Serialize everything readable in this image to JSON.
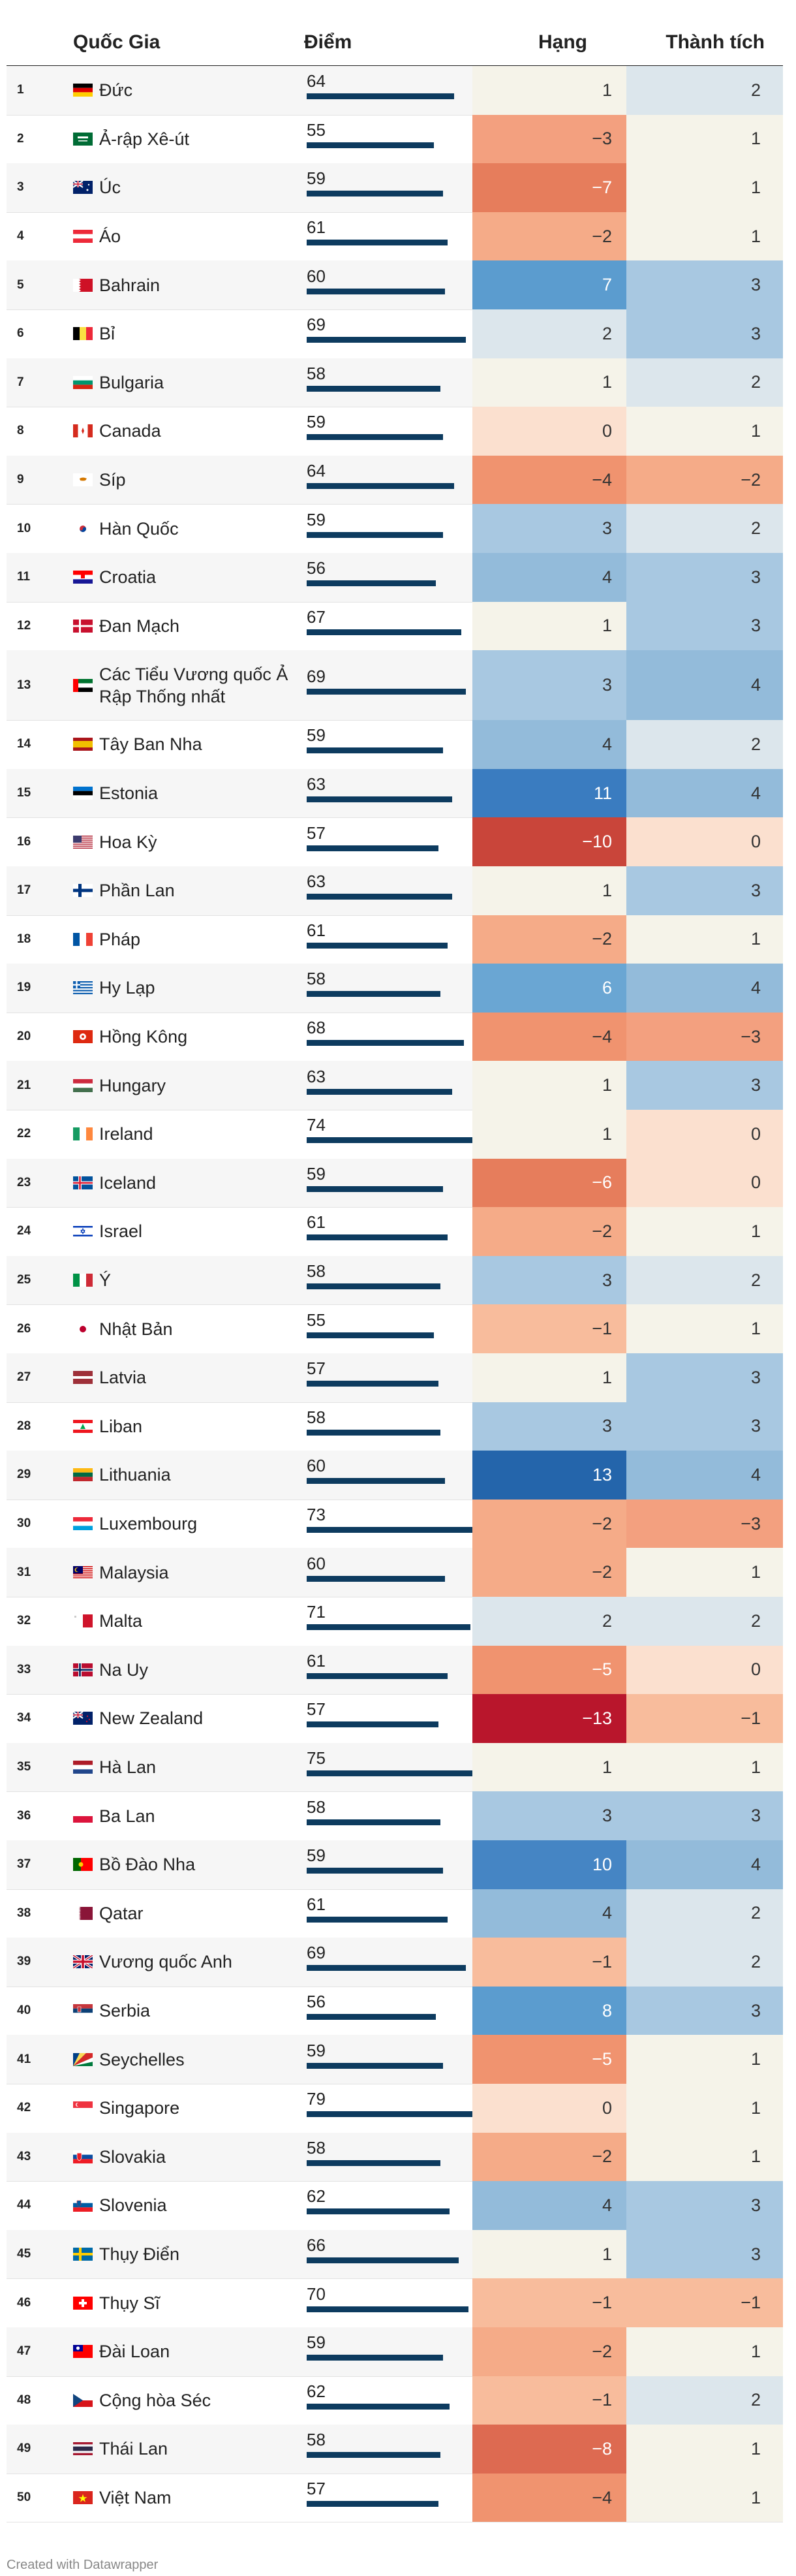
{
  "header": {
    "country": "Quốc Gia",
    "score": "Điểm",
    "rank": "Hạng",
    "achievement": "Thành tích"
  },
  "credit": "Created with Datawrapper",
  "colors": {
    "bar": "#0d3b5f",
    "neutral": "#f5f3e9"
  },
  "chart_data": {
    "type": "table",
    "columns": [
      "#",
      "Quốc Gia",
      "Điểm",
      "Hạng",
      "Thành tích"
    ],
    "score_max": 80,
    "rows": [
      {
        "n": "1",
        "country": "Đức",
        "flag": "de",
        "score": 64,
        "rank": "1",
        "ach": "2"
      },
      {
        "n": "2",
        "country": "Ả-rập Xê-út",
        "flag": "sa",
        "score": 55,
        "rank": "−3",
        "ach": "1"
      },
      {
        "n": "3",
        "country": "Úc",
        "flag": "au",
        "score": 59,
        "rank": "−7",
        "ach": "1"
      },
      {
        "n": "4",
        "country": "Áo",
        "flag": "at",
        "score": 61,
        "rank": "−2",
        "ach": "1"
      },
      {
        "n": "5",
        "country": "Bahrain",
        "flag": "bh",
        "score": 60,
        "rank": "7",
        "ach": "3"
      },
      {
        "n": "6",
        "country": "Bỉ",
        "flag": "be",
        "score": 69,
        "rank": "2",
        "ach": "3"
      },
      {
        "n": "7",
        "country": "Bulgaria",
        "flag": "bg",
        "score": 58,
        "rank": "1",
        "ach": "2"
      },
      {
        "n": "8",
        "country": "Canada",
        "flag": "ca",
        "score": 59,
        "rank": "0",
        "ach": "1"
      },
      {
        "n": "9",
        "country": "Síp",
        "flag": "cy",
        "score": 64,
        "rank": "−4",
        "ach": "−2"
      },
      {
        "n": "10",
        "country": "Hàn Quốc",
        "flag": "kr",
        "score": 59,
        "rank": "3",
        "ach": "2"
      },
      {
        "n": "11",
        "country": "Croatia",
        "flag": "hr",
        "score": 56,
        "rank": "4",
        "ach": "3"
      },
      {
        "n": "12",
        "country": "Đan Mạch",
        "flag": "dk",
        "score": 67,
        "rank": "1",
        "ach": "3"
      },
      {
        "n": "13",
        "country": "Các Tiểu Vương quốc Ả Rập Thống nhất",
        "flag": "ae",
        "score": 69,
        "rank": "3",
        "ach": "4"
      },
      {
        "n": "14",
        "country": "Tây Ban Nha",
        "flag": "es",
        "score": 59,
        "rank": "4",
        "ach": "2"
      },
      {
        "n": "15",
        "country": "Estonia",
        "flag": "ee",
        "score": 63,
        "rank": "11",
        "ach": "4"
      },
      {
        "n": "16",
        "country": "Hoa Kỳ",
        "flag": "us",
        "score": 57,
        "rank": "−10",
        "ach": "0"
      },
      {
        "n": "17",
        "country": "Phần Lan",
        "flag": "fi",
        "score": 63,
        "rank": "1",
        "ach": "3"
      },
      {
        "n": "18",
        "country": "Pháp",
        "flag": "fr",
        "score": 61,
        "rank": "−2",
        "ach": "1"
      },
      {
        "n": "19",
        "country": "Hy Lạp",
        "flag": "gr",
        "score": 58,
        "rank": "6",
        "ach": "4"
      },
      {
        "n": "20",
        "country": "Hồng Kông",
        "flag": "hk",
        "score": 68,
        "rank": "−4",
        "ach": "−3"
      },
      {
        "n": "21",
        "country": "Hungary",
        "flag": "hu",
        "score": 63,
        "rank": "1",
        "ach": "3"
      },
      {
        "n": "22",
        "country": "Ireland",
        "flag": "ie",
        "score": 74,
        "rank": "1",
        "ach": "0"
      },
      {
        "n": "23",
        "country": "Iceland",
        "flag": "is",
        "score": 59,
        "rank": "−6",
        "ach": "0"
      },
      {
        "n": "24",
        "country": "Israel",
        "flag": "il",
        "score": 61,
        "rank": "−2",
        "ach": "1"
      },
      {
        "n": "25",
        "country": "Ý",
        "flag": "it",
        "score": 58,
        "rank": "3",
        "ach": "2"
      },
      {
        "n": "26",
        "country": "Nhật Bản",
        "flag": "jp",
        "score": 55,
        "rank": "−1",
        "ach": "1"
      },
      {
        "n": "27",
        "country": "Latvia",
        "flag": "lv",
        "score": 57,
        "rank": "1",
        "ach": "3"
      },
      {
        "n": "28",
        "country": "Liban",
        "flag": "lb",
        "score": 58,
        "rank": "3",
        "ach": "3"
      },
      {
        "n": "29",
        "country": "Lithuania",
        "flag": "lt",
        "score": 60,
        "rank": "13",
        "ach": "4"
      },
      {
        "n": "30",
        "country": "Luxembourg",
        "flag": "lu",
        "score": 73,
        "rank": "−2",
        "ach": "−3"
      },
      {
        "n": "31",
        "country": "Malaysia",
        "flag": "my",
        "score": 60,
        "rank": "−2",
        "ach": "1"
      },
      {
        "n": "32",
        "country": "Malta",
        "flag": "mt",
        "score": 71,
        "rank": "2",
        "ach": "2"
      },
      {
        "n": "33",
        "country": "Na Uy",
        "flag": "no",
        "score": 61,
        "rank": "−5",
        "ach": "0"
      },
      {
        "n": "34",
        "country": "New Zealand",
        "flag": "nz",
        "score": 57,
        "rank": "−13",
        "ach": "−1"
      },
      {
        "n": "35",
        "country": "Hà Lan",
        "flag": "nl",
        "score": 75,
        "rank": "1",
        "ach": "1"
      },
      {
        "n": "36",
        "country": "Ba Lan",
        "flag": "pl",
        "score": 58,
        "rank": "3",
        "ach": "3"
      },
      {
        "n": "37",
        "country": "Bồ Đào Nha",
        "flag": "pt",
        "score": 59,
        "rank": "10",
        "ach": "4"
      },
      {
        "n": "38",
        "country": "Qatar",
        "flag": "qa",
        "score": 61,
        "rank": "4",
        "ach": "2"
      },
      {
        "n": "39",
        "country": "Vương quốc Anh",
        "flag": "gb",
        "score": 69,
        "rank": "−1",
        "ach": "2"
      },
      {
        "n": "40",
        "country": "Serbia",
        "flag": "rs",
        "score": 56,
        "rank": "8",
        "ach": "3"
      },
      {
        "n": "41",
        "country": "Seychelles",
        "flag": "sc",
        "score": 59,
        "rank": "−5",
        "ach": "1"
      },
      {
        "n": "42",
        "country": "Singapore",
        "flag": "sg",
        "score": 79,
        "rank": "0",
        "ach": "1"
      },
      {
        "n": "43",
        "country": "Slovakia",
        "flag": "sk",
        "score": 58,
        "rank": "−2",
        "ach": "1"
      },
      {
        "n": "44",
        "country": "Slovenia",
        "flag": "si",
        "score": 62,
        "rank": "4",
        "ach": "3"
      },
      {
        "n": "45",
        "country": "Thụy Điển",
        "flag": "se",
        "score": 66,
        "rank": "1",
        "ach": "3"
      },
      {
        "n": "46",
        "country": "Thụy Sĩ",
        "flag": "ch",
        "score": 70,
        "rank": "−1",
        "ach": "−1"
      },
      {
        "n": "47",
        "country": "Đài Loan",
        "flag": "tw",
        "score": 59,
        "rank": "−2",
        "ach": "1"
      },
      {
        "n": "48",
        "country": "Cộng hòa Séc",
        "flag": "cz",
        "score": 62,
        "rank": "−1",
        "ach": "2"
      },
      {
        "n": "49",
        "country": "Thái Lan",
        "flag": "th",
        "score": 58,
        "rank": "−8",
        "ach": "1"
      },
      {
        "n": "50",
        "country": "Việt Nam",
        "flag": "vn",
        "score": 57,
        "rank": "−4",
        "ach": "1"
      }
    ]
  }
}
